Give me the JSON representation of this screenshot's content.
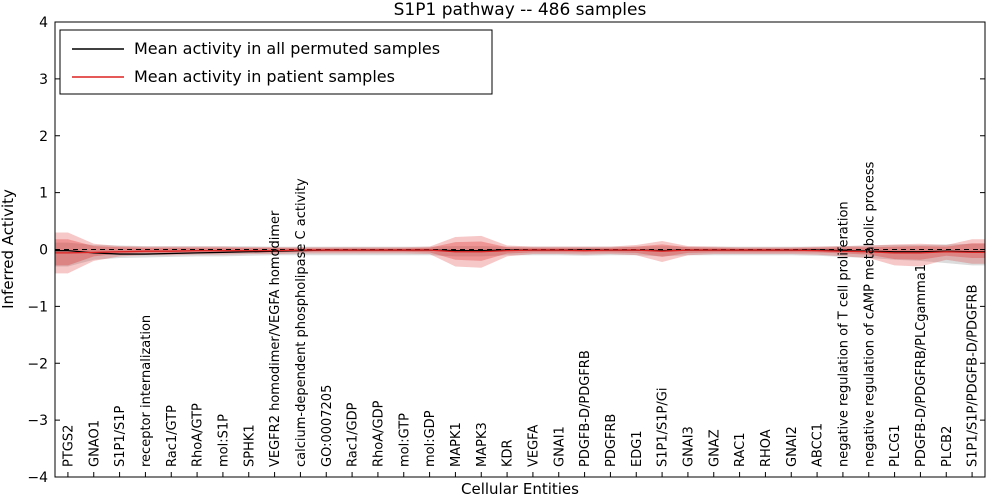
{
  "chart_data": {
    "type": "line",
    "title": "S1P1 pathway -- 486 samples",
    "xlabel": "Cellular Entities",
    "ylabel": "Inferred Activity",
    "ylim": [
      -4,
      4
    ],
    "yticks": [
      -4,
      -3,
      -2,
      -1,
      0,
      1,
      2,
      3,
      4
    ],
    "grid": false,
    "zero_line": true,
    "legend_position": "upper left",
    "categories": [
      "PTGS2",
      "GNAO1",
      "S1P1/S1P",
      "receptor internalization",
      "Rac1/GTP",
      "RhoA/GTP",
      "mol:S1P",
      "SPHK1",
      "VEGFR2 homodimer/VEGFA homodimer",
      "calcium-dependent phospholipase C activity",
      "GO:0007205",
      "Rac1/GDP",
      "RhoA/GDP",
      "mol:GTP",
      "mol:GDP",
      "MAPK1",
      "MAPK3",
      "KDR",
      "VEGFA",
      "GNAI1",
      "PDGFB-D/PDGFRB",
      "PDGFRB",
      "EDG1",
      "S1P1/S1P/Gi",
      "GNAI3",
      "GNAZ",
      "RAC1",
      "RHOA",
      "GNAI2",
      "ABCC1",
      "negative regulation of T cell proliferation",
      "negative regulation of cAMP metabolic process",
      "PLCG1",
      "PDGFB-D/PDGFRB/PLCgamma1",
      "PLCB2",
      "S1P1/S1P/PDGFB-D/PDGFRB"
    ],
    "series": [
      {
        "name": "Mean activity in all permuted samples",
        "color": "#000000",
        "values": [
          -0.02,
          -0.06,
          -0.08,
          -0.08,
          -0.07,
          -0.06,
          -0.05,
          -0.04,
          -0.03,
          -0.02,
          -0.01,
          -0.01,
          -0.01,
          -0.01,
          -0.01,
          -0.02,
          -0.02,
          -0.01,
          -0.01,
          -0.01,
          -0.01,
          -0.01,
          -0.01,
          -0.02,
          -0.01,
          -0.01,
          -0.01,
          -0.01,
          -0.01,
          -0.01,
          -0.02,
          -0.03,
          -0.04,
          -0.04,
          -0.03,
          -0.04
        ]
      },
      {
        "name": "Mean activity in patient samples",
        "color": "#dd2222",
        "values": [
          -0.06,
          -0.05,
          -0.04,
          -0.03,
          -0.03,
          -0.02,
          -0.02,
          -0.02,
          -0.02,
          -0.01,
          -0.01,
          -0.01,
          -0.01,
          -0.01,
          -0.01,
          -0.04,
          -0.04,
          -0.02,
          -0.01,
          -0.01,
          -0.02,
          -0.01,
          -0.01,
          -0.03,
          -0.01,
          -0.01,
          -0.01,
          -0.01,
          -0.01,
          -0.02,
          -0.03,
          -0.04,
          -0.06,
          -0.06,
          -0.04,
          -0.05
        ]
      }
    ],
    "bands": [
      {
        "name": "permuted-range",
        "color": "#9a9a9a",
        "opacity": 0.35,
        "lower": [
          -0.3,
          -0.18,
          -0.15,
          -0.14,
          -0.13,
          -0.12,
          -0.12,
          -0.11,
          -0.1,
          -0.1,
          -0.1,
          -0.1,
          -0.1,
          -0.1,
          -0.1,
          -0.12,
          -0.12,
          -0.1,
          -0.1,
          -0.1,
          -0.11,
          -0.1,
          -0.1,
          -0.12,
          -0.1,
          -0.1,
          -0.1,
          -0.1,
          -0.1,
          -0.11,
          -0.13,
          -0.15,
          -0.18,
          -0.2,
          -0.24,
          -0.28
        ],
        "upper": [
          0.12,
          0.08,
          0.07,
          0.06,
          0.06,
          0.06,
          0.06,
          0.06,
          0.05,
          0.05,
          0.05,
          0.05,
          0.05,
          0.05,
          0.05,
          0.06,
          0.06,
          0.05,
          0.05,
          0.05,
          0.05,
          0.05,
          0.05,
          0.06,
          0.05,
          0.05,
          0.05,
          0.05,
          0.05,
          0.05,
          0.06,
          0.07,
          0.08,
          0.08,
          0.09,
          0.1
        ]
      },
      {
        "name": "patient-range-outer",
        "color": "#dd2222",
        "opacity": 0.25,
        "lower": [
          -0.42,
          -0.2,
          -0.12,
          -0.1,
          -0.1,
          -0.09,
          -0.09,
          -0.08,
          -0.08,
          -0.07,
          -0.07,
          -0.07,
          -0.07,
          -0.07,
          -0.08,
          -0.3,
          -0.32,
          -0.12,
          -0.08,
          -0.08,
          -0.09,
          -0.08,
          -0.1,
          -0.22,
          -0.1,
          -0.08,
          -0.08,
          -0.08,
          -0.08,
          -0.09,
          -0.12,
          -0.15,
          -0.28,
          -0.3,
          -0.18,
          -0.25
        ],
        "upper": [
          0.3,
          0.1,
          0.06,
          0.05,
          0.05,
          0.05,
          0.05,
          0.04,
          0.04,
          0.04,
          0.04,
          0.04,
          0.04,
          0.04,
          0.05,
          0.22,
          0.24,
          0.07,
          0.05,
          0.05,
          0.05,
          0.05,
          0.08,
          0.15,
          0.06,
          0.05,
          0.04,
          0.04,
          0.04,
          0.05,
          0.06,
          0.07,
          0.09,
          0.1,
          0.08,
          0.18
        ]
      },
      {
        "name": "patient-range-inner",
        "color": "#dd2222",
        "opacity": 0.3,
        "lower": [
          -0.28,
          -0.12,
          -0.07,
          -0.06,
          -0.06,
          -0.05,
          -0.05,
          -0.05,
          -0.05,
          -0.04,
          -0.04,
          -0.04,
          -0.04,
          -0.04,
          -0.05,
          -0.18,
          -0.2,
          -0.07,
          -0.05,
          -0.05,
          -0.05,
          -0.05,
          -0.06,
          -0.13,
          -0.06,
          -0.05,
          -0.05,
          -0.05,
          -0.05,
          -0.05,
          -0.07,
          -0.09,
          -0.17,
          -0.18,
          -0.11,
          -0.15
        ],
        "upper": [
          0.18,
          0.06,
          0.04,
          0.03,
          0.03,
          0.03,
          0.03,
          0.03,
          0.03,
          0.02,
          0.02,
          0.02,
          0.02,
          0.02,
          0.03,
          0.13,
          0.14,
          0.04,
          0.03,
          0.03,
          0.03,
          0.03,
          0.05,
          0.09,
          0.04,
          0.03,
          0.02,
          0.02,
          0.02,
          0.03,
          0.04,
          0.04,
          0.05,
          0.06,
          0.05,
          0.11
        ]
      }
    ]
  }
}
